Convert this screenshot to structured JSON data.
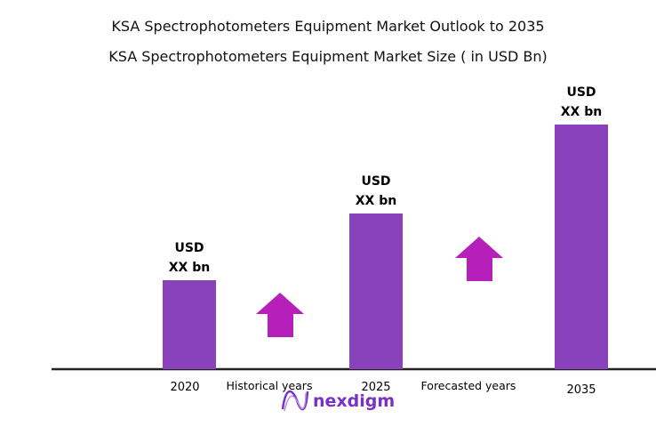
{
  "chart_data": {
    "type": "bar",
    "title": "KSA Spectrophotometers Equipment Market Outlook to 2035",
    "subtitle": "KSA Spectrophotometers Equipment Market Size  ( in USD Bn)",
    "categories": [
      "2020",
      "2025",
      "2035"
    ],
    "values": [
      100,
      175,
      275
    ],
    "data_labels": [
      [
        "USD",
        "XX bn"
      ],
      [
        "USD",
        "XX bn"
      ],
      [
        "USD",
        "XX bn"
      ]
    ],
    "annotations": [
      "Historical years",
      "Forecasted years"
    ],
    "grid": false,
    "legend": "none",
    "colors": {
      "bar": "#8A42BC",
      "arrow": "#B61FB9",
      "axis": "#222222"
    }
  },
  "brand": {
    "logo_text": "nexdigm",
    "color": "#7A2FC9"
  }
}
